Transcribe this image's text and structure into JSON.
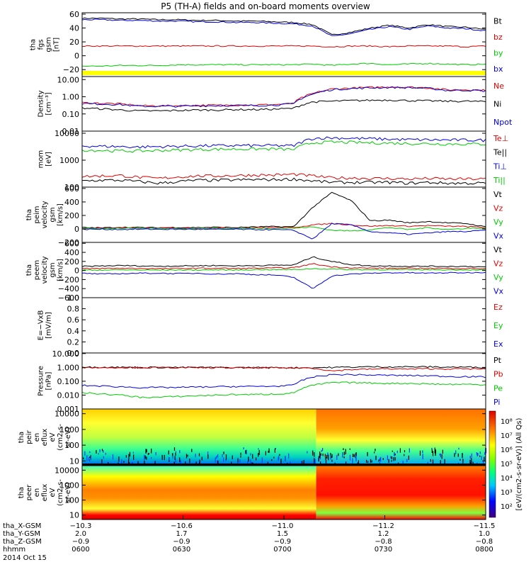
{
  "title": "P5 (TH-A) fields and on-board moments overview",
  "colors": {
    "black": "#000000",
    "red": "#e00000",
    "green": "#00cc00",
    "blue": "#0000e0",
    "yellow": "#ffff00"
  },
  "chart_data": [
    {
      "type": "line",
      "name": "fgs",
      "ylabel": [
        "tha",
        "fgs",
        "gsm",
        "[nT]"
      ],
      "yscale": "linear",
      "ylim": [
        -30,
        62
      ],
      "yticks": [
        "60",
        "40",
        "20",
        "0",
        "−20"
      ],
      "ytick_values": [
        60,
        40,
        20,
        0,
        -20
      ],
      "legend": [
        {
          "label": "Bt",
          "color": "black"
        },
        {
          "label": "bz",
          "color": "red"
        },
        {
          "label": "by",
          "color": "green"
        },
        {
          "label": "bx",
          "color": "blue"
        }
      ],
      "series": [
        {
          "name": "Bt",
          "color": "black",
          "values": [
            54,
            54,
            53,
            53,
            52,
            52,
            51,
            51,
            50,
            50,
            49,
            48,
            45,
            30,
            34,
            40,
            44,
            40,
            45,
            42,
            41,
            38
          ]
        },
        {
          "name": "bx",
          "color": "blue",
          "values": [
            52,
            52,
            51,
            51,
            50,
            50,
            49,
            49,
            48,
            48,
            47,
            46,
            43,
            28,
            32,
            38,
            42,
            38,
            43,
            40,
            39,
            36
          ]
        },
        {
          "name": "bz",
          "color": "red",
          "values": [
            14,
            14,
            14,
            14,
            14,
            14,
            14,
            14,
            14,
            14,
            14,
            14,
            14,
            13,
            14,
            14,
            13,
            14,
            14,
            14,
            13,
            14
          ]
        },
        {
          "name": "by",
          "color": "green",
          "values": [
            -15,
            -15,
            -14,
            -14,
            -14,
            -13,
            -13,
            -13,
            -13,
            -13,
            -13,
            -13,
            -12,
            -14,
            -12,
            -11,
            -13,
            -12,
            -11,
            -12,
            -13,
            -12
          ]
        }
      ],
      "mode_bar": true
    },
    {
      "type": "line",
      "name": "density",
      "ylabel": [
        "Density",
        "[cm⁻³]"
      ],
      "yscale": "log",
      "ylim": [
        0.01,
        15
      ],
      "yticks": [
        "10.00",
        "1.00",
        "0.10",
        "0.01"
      ],
      "ytick_values": [
        10,
        1,
        0.1,
        0.01
      ],
      "legend": [
        {
          "label": "Ne",
          "color": "red"
        },
        {
          "label": "Ni",
          "color": "black"
        },
        {
          "label": "Npot",
          "color": "blue"
        }
      ],
      "series": [
        {
          "name": "Ne",
          "color": "red",
          "values": [
            0.45,
            0.42,
            0.38,
            0.3,
            0.3,
            0.3,
            0.32,
            0.32,
            0.33,
            0.33,
            0.35,
            0.4,
            1.5,
            2.8,
            3.2,
            3.5,
            3.8,
            3.6,
            3.3,
            2.5,
            2.6,
            2.4
          ]
        },
        {
          "name": "Npot",
          "color": "blue",
          "values": [
            0.4,
            0.38,
            0.35,
            0.28,
            0.28,
            0.28,
            0.3,
            0.3,
            0.31,
            0.31,
            0.33,
            0.38,
            1.4,
            2.6,
            3.0,
            3.3,
            3.5,
            3.4,
            3.1,
            2.3,
            2.4,
            2.2
          ]
        },
        {
          "name": "Ni",
          "color": "black",
          "values": [
            0.22,
            0.2,
            0.17,
            0.15,
            0.15,
            0.16,
            0.17,
            0.17,
            0.18,
            0.18,
            0.19,
            0.21,
            0.5,
            0.55,
            0.6,
            0.62,
            0.65,
            0.6,
            0.58,
            0.55,
            0.55,
            0.52
          ]
        }
      ]
    },
    {
      "type": "line",
      "name": "temperature",
      "ylabel": [
        "mom",
        "[eV]"
      ],
      "yscale": "log",
      "ylim": [
        100,
        12000
      ],
      "yticks": [
        "10000",
        "1000",
        "100"
      ],
      "ytick_values": [
        10000,
        1000,
        100
      ],
      "legend": [
        {
          "label": "Te⊥",
          "color": "red"
        },
        {
          "label": "Te||",
          "color": "black"
        },
        {
          "label": "Ti⊥",
          "color": "blue"
        },
        {
          "label": "Ti||",
          "color": "green"
        }
      ],
      "series": [
        {
          "name": "Ti⊥",
          "color": "blue",
          "values": [
            3400,
            3300,
            3200,
            3100,
            3200,
            3300,
            3400,
            3450,
            3500,
            3500,
            3500,
            3400,
            6500,
            6800,
            6500,
            6300,
            6000,
            5800,
            5700,
            5600,
            5600,
            5500
          ]
        },
        {
          "name": "Ti||",
          "color": "green",
          "values": [
            2400,
            2300,
            2200,
            2200,
            2300,
            2400,
            2500,
            2550,
            2600,
            2600,
            2600,
            2500,
            4500,
            4700,
            4600,
            4400,
            4300,
            4200,
            4100,
            4000,
            4000,
            4000
          ]
        },
        {
          "name": "Te⊥",
          "color": "red",
          "values": [
            250,
            260,
            270,
            230,
            210,
            240,
            260,
            260,
            270,
            280,
            280,
            300,
            260,
            220,
            220,
            210,
            210,
            200,
            210,
            200,
            200,
            200
          ]
        },
        {
          "name": "Te||",
          "color": "black",
          "values": [
            170,
            180,
            180,
            160,
            140,
            160,
            180,
            180,
            185,
            190,
            190,
            200,
            170,
            150,
            150,
            150,
            150,
            140,
            150,
            140,
            140,
            140
          ]
        }
      ]
    },
    {
      "type": "line",
      "name": "peim-velocity",
      "ylabel": [
        "tha",
        "peim",
        "velocity",
        "gsm",
        "[km/s]"
      ],
      "yscale": "linear",
      "ylim": [
        -200,
        620
      ],
      "yticks": [
        "600",
        "400",
        "200",
        "0",
        "−200"
      ],
      "ytick_values": [
        600,
        400,
        200,
        0,
        -200
      ],
      "legend": [
        {
          "label": "Vt",
          "color": "black"
        },
        {
          "label": "Vz",
          "color": "red"
        },
        {
          "label": "Vy",
          "color": "green"
        },
        {
          "label": "Vx",
          "color": "blue"
        }
      ],
      "series": [
        {
          "name": "Vt",
          "color": "black",
          "values": [
            20,
            15,
            25,
            20,
            18,
            22,
            20,
            25,
            20,
            30,
            35,
            30,
            320,
            540,
            420,
            120,
            130,
            90,
            110,
            90,
            80,
            30
          ]
        },
        {
          "name": "Vz",
          "color": "red",
          "values": [
            10,
            10,
            15,
            10,
            10,
            12,
            10,
            15,
            10,
            20,
            20,
            20,
            60,
            80,
            60,
            40,
            50,
            40,
            50,
            40,
            35,
            20
          ]
        },
        {
          "name": "Vy",
          "color": "green",
          "values": [
            5,
            5,
            10,
            5,
            5,
            8,
            5,
            10,
            5,
            10,
            10,
            10,
            30,
            -20,
            -30,
            -10,
            20,
            -10,
            20,
            -10,
            10,
            10
          ]
        },
        {
          "name": "Vx",
          "color": "blue",
          "values": [
            -5,
            -5,
            -8,
            -5,
            -5,
            -6,
            -5,
            -8,
            -5,
            -10,
            -10,
            -20,
            -150,
            80,
            60,
            -40,
            -60,
            -80,
            -60,
            -40,
            -40,
            -20
          ]
        }
      ]
    },
    {
      "type": "line",
      "name": "peem-velocity",
      "ylabel": [
        "tha",
        "peem",
        "velocity",
        "gsm",
        "[km/s]"
      ],
      "yscale": "linear",
      "ylim": [
        -600,
        620
      ],
      "yticks": [
        "600",
        "400",
        "200",
        "0",
        "−200",
        "−400",
        "−600"
      ],
      "ytick_values": [
        600,
        400,
        200,
        0,
        -200,
        -400,
        -600
      ],
      "legend": [
        {
          "label": "Vt",
          "color": "black"
        },
        {
          "label": "Vz",
          "color": "red"
        },
        {
          "label": "Vy",
          "color": "green"
        },
        {
          "label": "Vx",
          "color": "blue"
        }
      ],
      "series": [
        {
          "name": "Vt",
          "color": "black",
          "values": [
            90,
            100,
            110,
            100,
            95,
            100,
            105,
            110,
            100,
            110,
            115,
            120,
            300,
            200,
            130,
            100,
            100,
            90,
            95,
            90,
            90,
            80
          ]
        },
        {
          "name": "Vz",
          "color": "red",
          "values": [
            40,
            45,
            50,
            45,
            40,
            45,
            50,
            50,
            45,
            50,
            55,
            60,
            150,
            80,
            60,
            50,
            50,
            45,
            50,
            45,
            45,
            40
          ]
        },
        {
          "name": "Vy",
          "color": "green",
          "values": [
            10,
            10,
            15,
            10,
            10,
            12,
            10,
            15,
            10,
            20,
            20,
            20,
            40,
            30,
            20,
            20,
            20,
            15,
            20,
            15,
            15,
            15
          ]
        },
        {
          "name": "Vx",
          "color": "blue",
          "values": [
            -60,
            -80,
            -70,
            -60,
            -60,
            -70,
            -60,
            -80,
            -70,
            -90,
            -100,
            -150,
            -400,
            -120,
            -80,
            -60,
            -50,
            -50,
            -60,
            -50,
            -50,
            -40
          ]
        }
      ]
    },
    {
      "type": "line",
      "name": "e-field",
      "ylabel": [
        "E=−VxB",
        "[mV/m]"
      ],
      "yscale": "linear",
      "ylim": [
        0,
        1
      ],
      "yticks": [
        "1.0",
        "0.8",
        "0.6",
        "0.4",
        "0.2",
        "0.0"
      ],
      "ytick_values": [
        1,
        0.8,
        0.6,
        0.4,
        0.2,
        0
      ],
      "legend": [
        {
          "label": "Ez",
          "color": "red"
        },
        {
          "label": "Ey",
          "color": "green"
        },
        {
          "label": "Ex",
          "color": "blue"
        }
      ],
      "series": []
    },
    {
      "type": "line",
      "name": "pressure",
      "ylabel": [
        "Pressure",
        "[nPa]"
      ],
      "yscale": "log",
      "ylim": [
        0.001,
        11
      ],
      "yticks": [
        "10.000",
        "1.000",
        "0.100",
        "0.010",
        "0.001"
      ],
      "ytick_values": [
        10,
        1,
        0.1,
        0.01,
        0.001
      ],
      "legend": [
        {
          "label": "Pt",
          "color": "black"
        },
        {
          "label": "Pb",
          "color": "red"
        },
        {
          "label": "Pe",
          "color": "green"
        },
        {
          "label": "Pi",
          "color": "blue"
        }
      ],
      "series": [
        {
          "name": "Pt",
          "color": "black",
          "values": [
            1.05,
            1.03,
            1.02,
            1.0,
            1.0,
            1.0,
            0.98,
            0.98,
            0.97,
            0.97,
            0.96,
            0.95,
            0.95,
            1.0,
            1.05,
            1.1,
            1.1,
            1.1,
            1.1,
            1.05,
            1.05,
            1.0
          ]
        },
        {
          "name": "Pb",
          "color": "red",
          "values": [
            1.0,
            0.99,
            0.98,
            0.97,
            0.97,
            0.96,
            0.95,
            0.95,
            0.94,
            0.94,
            0.93,
            0.92,
            0.9,
            0.55,
            0.7,
            0.75,
            0.8,
            0.75,
            0.8,
            0.78,
            0.78,
            0.75
          ]
        },
        {
          "name": "Pi",
          "color": "blue",
          "values": [
            0.05,
            0.045,
            0.04,
            0.035,
            0.035,
            0.036,
            0.038,
            0.04,
            0.042,
            0.042,
            0.044,
            0.05,
            0.2,
            0.3,
            0.3,
            0.28,
            0.27,
            0.26,
            0.25,
            0.22,
            0.22,
            0.2
          ]
        },
        {
          "name": "Pe",
          "color": "green",
          "values": [
            0.015,
            0.012,
            0.01,
            0.007,
            0.007,
            0.008,
            0.009,
            0.01,
            0.011,
            0.011,
            0.012,
            0.014,
            0.05,
            0.08,
            0.08,
            0.075,
            0.07,
            0.07,
            0.065,
            0.06,
            0.06,
            0.055
          ]
        }
      ]
    },
    {
      "type": "heatmap",
      "name": "peir-en-eflux",
      "ylabel": [
        "tha",
        "peir",
        "en",
        "eflux",
        "eV",
        "(cm2-s-",
        "sr-eV)"
      ],
      "yscale": "log",
      "ylim": [
        5,
        20000
      ],
      "yticks": [
        "10000",
        "1000",
        "100",
        "10"
      ],
      "ytick_values": [
        10000,
        1000,
        100,
        10
      ]
    },
    {
      "type": "heatmap",
      "name": "peer-en-eflux",
      "ylabel": [
        "tha",
        "peer",
        "en",
        "eflux",
        "eV",
        "(cm2-s-",
        "sr-eV)"
      ],
      "yscale": "log",
      "ylim": [
        5,
        20000
      ],
      "yticks": [
        "10000",
        "1000",
        "100",
        "10"
      ],
      "ytick_values": [
        10000,
        1000,
        100,
        10
      ]
    }
  ],
  "colorbar": {
    "label": "[eV/(cm2-s-sr-eV)] (All Qs)",
    "ticks": [
      "10⁸",
      "10⁷",
      "10⁶",
      "10⁵",
      "10⁴",
      "10³",
      "10²"
    ]
  },
  "xaxis": {
    "tick_values": [
      "0600",
      "0630",
      "0700",
      "0730",
      "0800"
    ],
    "rows": [
      {
        "label": "tha_X-GSM",
        "values": [
          "−10.3",
          "−10.6",
          "−11.0",
          "−11.2",
          "−11.5"
        ]
      },
      {
        "label": "tha_Y-GSM",
        "values": [
          "2.0",
          "1.7",
          "1.5",
          "1.2",
          "1.0"
        ]
      },
      {
        "label": "tha_Z-GSM",
        "values": [
          "−0.9",
          "−0.9",
          "−0.9",
          "−0.8",
          "−0.8"
        ]
      },
      {
        "label": "hhmm",
        "values": [
          "0600",
          "0630",
          "0700",
          "0730",
          "0800"
        ]
      }
    ],
    "date": "2014 Oct 15"
  }
}
